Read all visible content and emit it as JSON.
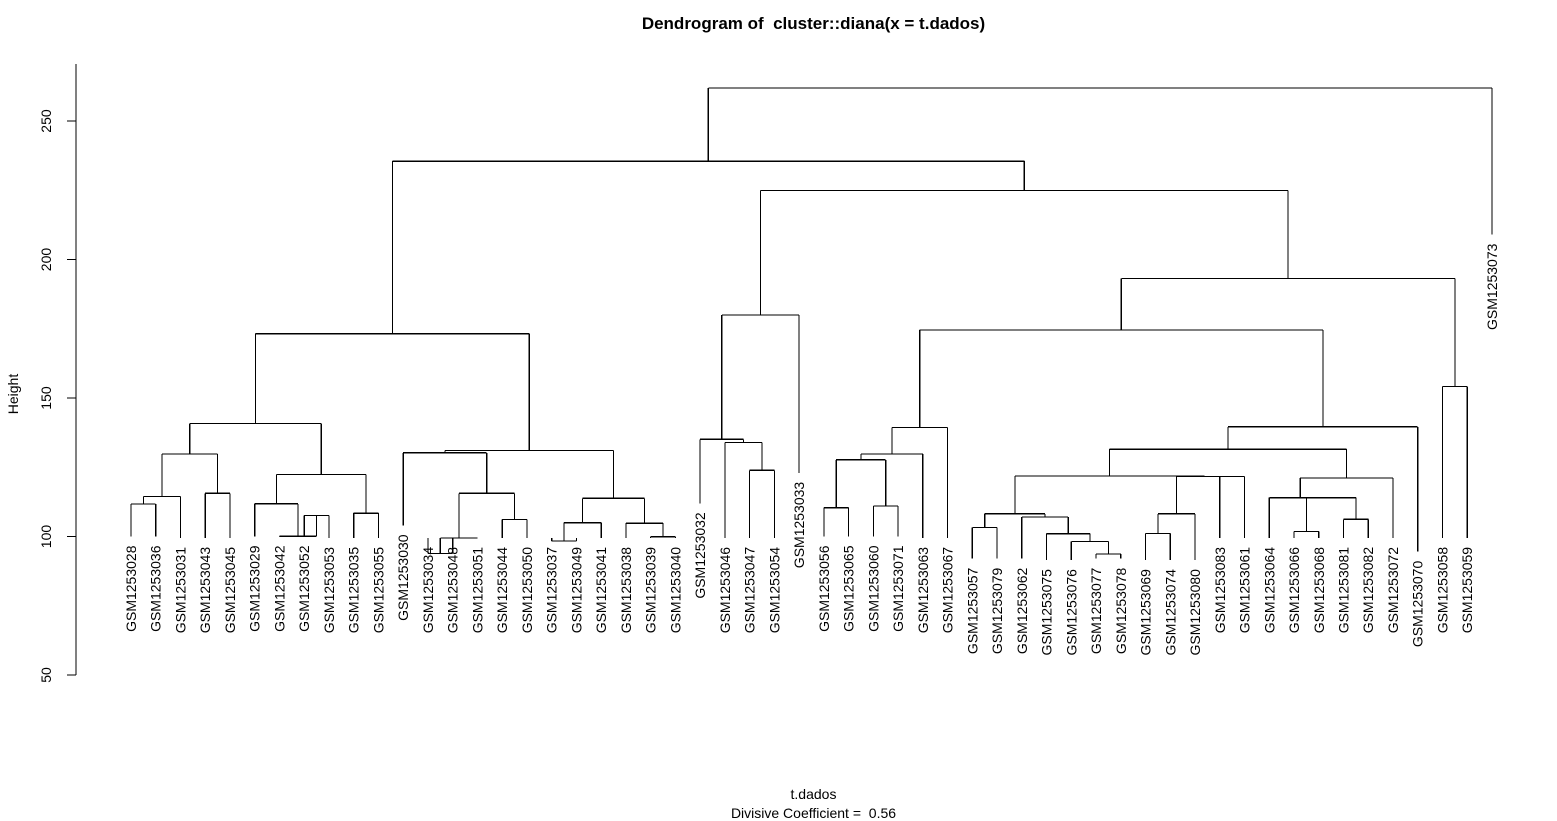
{
  "chart_data": {
    "type": "dendrogram",
    "title": "Dendrogram of  cluster::diana(x = t.dados)",
    "xlabel": "t.dados",
    "subtitle": "Divisive Coefficient =  0.56",
    "ylabel": "Height",
    "ylim": [
      50,
      270
    ],
    "yticks": [
      50,
      100,
      150,
      200,
      250
    ],
    "leaves": [
      "GSM1253028",
      "GSM1253036",
      "GSM1253031",
      "GSM1253043",
      "GSM1253045",
      "GSM1253029",
      "GSM1253042",
      "GSM1253052",
      "GSM1253053",
      "GSM1253035",
      "GSM1253055",
      "GSM1253030",
      "GSM1253034",
      "GSM1253048",
      "GSM1253051",
      "GSM1253044",
      "GSM1253050",
      "GSM1253037",
      "GSM1253049",
      "GSM1253041",
      "GSM1253038",
      "GSM1253039",
      "GSM1253040",
      "GSM1253032",
      "GSM1253046",
      "GSM1253047",
      "GSM1253054",
      "GSM1253033",
      "GSM1253056",
      "GSM1253065",
      "GSM1253060",
      "GSM1253071",
      "GSM1253063",
      "GSM1253067",
      "GSM1253057",
      "GSM1253079",
      "GSM1253062",
      "GSM1253075",
      "GSM1253076",
      "GSM1253077",
      "GSM1253078",
      "GSM1253069",
      "GSM1253074",
      "GSM1253080",
      "GSM1253083",
      "GSM1253061",
      "GSM1253064",
      "GSM1253066",
      "GSM1253068",
      "GSM1253081",
      "GSM1253082",
      "GSM1253072",
      "GSM1253070",
      "GSM1253058",
      "GSM1253059",
      "GSM1253073"
    ],
    "leaf_heights": [
      100,
      100,
      99.5,
      99.5,
      99.5,
      100,
      100,
      100,
      99.5,
      99.5,
      99.5,
      104,
      99.5,
      99.5,
      99.5,
      99.5,
      99.5,
      99.5,
      99.5,
      99.5,
      99.5,
      99.5,
      99.5,
      112,
      99.5,
      99.5,
      99.5,
      123,
      100,
      100,
      100,
      100,
      99.5,
      99.5,
      92,
      92,
      92,
      91.5,
      91.5,
      92,
      92,
      91.5,
      91.5,
      91.5,
      99.5,
      99.5,
      99.5,
      99.5,
      99.5,
      99.5,
      99.5,
      99.5,
      94.5,
      99.5,
      99.5,
      209
    ],
    "merges": [
      [
        -1,
        -2,
        111.7
      ],
      [
        1,
        -3,
        114.4
      ],
      [
        -4,
        -5,
        115.6
      ],
      [
        2,
        3,
        129.8
      ],
      [
        -8,
        -9,
        107.6
      ],
      [
        -7,
        5,
        100.1
      ],
      [
        -6,
        6,
        111.8
      ],
      [
        -10,
        -11,
        108.4
      ],
      [
        7,
        8,
        122.4
      ],
      [
        4,
        9,
        140.8
      ],
      [
        -13,
        -14,
        93.9
      ],
      [
        11,
        -15,
        99.5
      ],
      [
        -16,
        -17,
        106.1
      ],
      [
        12,
        13,
        115.6
      ],
      [
        -12,
        14,
        130.2
      ],
      [
        -18,
        -19,
        98.4
      ],
      [
        16,
        -20,
        105.0
      ],
      [
        -22,
        -23,
        99.9
      ],
      [
        -21,
        18,
        104.8
      ],
      [
        17,
        19,
        113.8
      ],
      [
        15,
        20,
        131.1
      ],
      [
        10,
        21,
        173.2
      ],
      [
        -26,
        -27,
        123.9
      ],
      [
        -25,
        23,
        133.9
      ],
      [
        -24,
        24,
        135.1
      ],
      [
        25,
        -28,
        180.0
      ],
      [
        -29,
        -30,
        110.4
      ],
      [
        -31,
        -32,
        111.0
      ],
      [
        27,
        28,
        127.7
      ],
      [
        29,
        -33,
        129.8
      ],
      [
        30,
        -34,
        139.3
      ],
      [
        -40,
        -41,
        93.7
      ],
      [
        -39,
        32,
        98.2
      ],
      [
        -38,
        33,
        101.0
      ],
      [
        -37,
        34,
        107.0
      ],
      [
        -35,
        -36,
        103.2
      ],
      [
        36,
        35,
        108.2
      ],
      [
        -42,
        -43,
        101.1
      ],
      [
        38,
        -44,
        108.2
      ],
      [
        -45,
        -46,
        121.7
      ],
      [
        39,
        40,
        121.7
      ],
      [
        37,
        41,
        121.8
      ],
      [
        -48,
        -49,
        101.8
      ],
      [
        -50,
        -51,
        106.2
      ],
      [
        43,
        44,
        114.0
      ],
      [
        -47,
        45,
        114.0
      ],
      [
        46,
        -52,
        121.1
      ],
      [
        42,
        47,
        131.5
      ],
      [
        48,
        -53,
        139.6
      ],
      [
        31,
        49,
        174.6
      ],
      [
        -54,
        -55,
        154.2
      ],
      [
        50,
        51,
        193.1
      ],
      [
        26,
        52,
        224.9
      ],
      [
        22,
        53,
        235.5
      ],
      [
        54,
        -56,
        261.9
      ]
    ]
  }
}
